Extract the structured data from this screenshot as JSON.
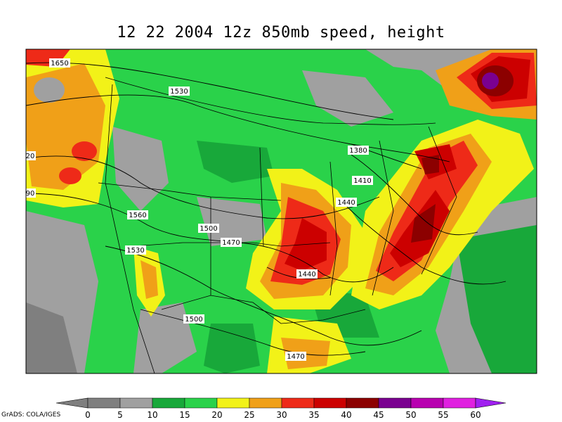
{
  "title": "12 22 2004 12z 850mb speed, height",
  "credit": "GrADS: COLA/IGES",
  "colors": {
    "c0": "#7f7f7f",
    "c5": "#a0a0a0",
    "c10": "#18a83a",
    "c15": "#2ad24a",
    "c20": "#f2f218",
    "c25": "#f0a018",
    "c30": "#ee2a18",
    "c35": "#cc0000",
    "c40": "#8c0000",
    "c45": "#7a0090",
    "c50": "#b800b0",
    "c55": "#e020e0",
    "c60": "#a020f0"
  },
  "colorbar": {
    "ticks": [
      "0",
      "5",
      "10",
      "15",
      "20",
      "25",
      "30",
      "35",
      "40",
      "45",
      "50",
      "55",
      "60"
    ]
  },
  "height_labels": [
    {
      "text": "1650"
    },
    {
      "text": "1530"
    },
    {
      "text": "20"
    },
    {
      "text": "90"
    },
    {
      "text": "1560"
    },
    {
      "text": "1530"
    },
    {
      "text": "1500"
    },
    {
      "text": "1470"
    },
    {
      "text": "1500"
    },
    {
      "text": "1470"
    },
    {
      "text": "1380"
    },
    {
      "text": "1410"
    },
    {
      "text": "1440"
    },
    {
      "text": "1440"
    }
  ]
}
